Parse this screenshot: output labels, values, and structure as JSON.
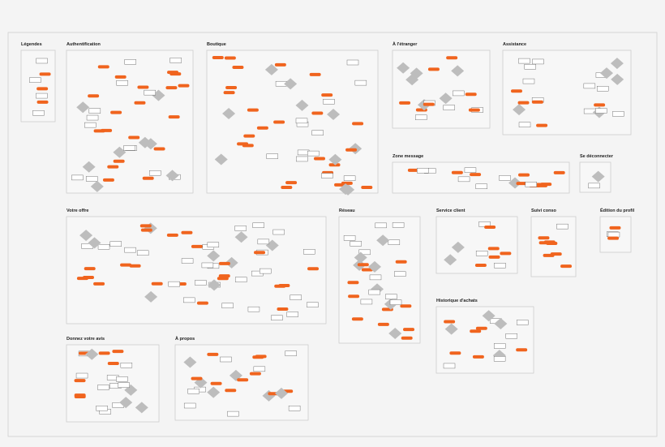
{
  "sections": [
    {
      "title": "Légendes"
    },
    {
      "title": "Authentification"
    },
    {
      "title": "Boutique"
    },
    {
      "title": "À l'étranger"
    },
    {
      "title": "Assistance"
    },
    {
      "title": "Zone message"
    },
    {
      "title": "Se déconnecter"
    },
    {
      "title": "Votre offre"
    },
    {
      "title": "Réseau"
    },
    {
      "title": "Service client"
    },
    {
      "title": "Suivi conso"
    },
    {
      "title": "Édition du profil"
    },
    {
      "title": "Historique d'achats"
    },
    {
      "title": "Donnez votre avis"
    },
    {
      "title": "À propos"
    }
  ]
}
